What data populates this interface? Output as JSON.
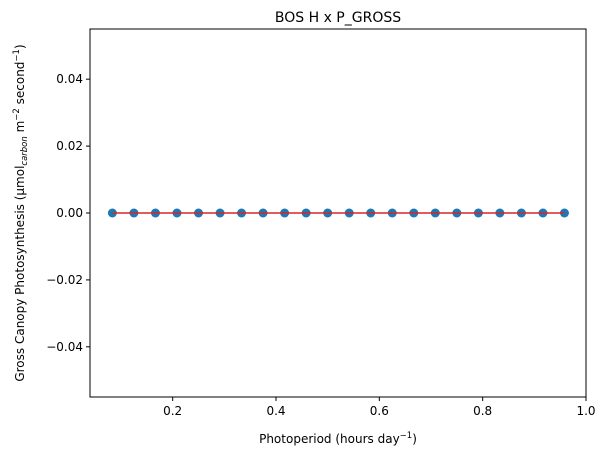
{
  "chart_data": {
    "type": "scatter",
    "title": "BOS H x P_GROSS",
    "xlabel_prefix": "Photoperiod (hours day",
    "xlabel_exp": "−1",
    "xlabel_suffix": ")",
    "ylabel_prefix": "Gross Canopy Photosynthesis (μmol",
    "ylabel_sub": "carbon",
    "ylabel_mid1": " m",
    "ylabel_exp1": "−2",
    "ylabel_mid2": " second",
    "ylabel_exp2": "−1",
    "ylabel_suffix": ")",
    "xlim": [
      0.04,
      1.0
    ],
    "ylim": [
      -0.055,
      0.055
    ],
    "xticks": [
      0.2,
      0.4,
      0.6,
      0.8,
      1.0
    ],
    "xtick_labels": [
      "0.2",
      "0.4",
      "0.6",
      "0.8",
      "1.0"
    ],
    "yticks": [
      -0.04,
      -0.02,
      0.0,
      0.02,
      0.04
    ],
    "ytick_labels": [
      "−0.04",
      "−0.02",
      "0.00",
      "0.02",
      "0.04"
    ],
    "grid": false,
    "series": [
      {
        "kind": "points",
        "color": "#1f77b4",
        "x": [
          0.0833,
          0.125,
          0.1667,
          0.2083,
          0.25,
          0.2917,
          0.3333,
          0.375,
          0.4167,
          0.4583,
          0.5,
          0.5417,
          0.5833,
          0.625,
          0.6667,
          0.7083,
          0.75,
          0.7917,
          0.8333,
          0.875,
          0.9167,
          0.9583
        ],
        "y": [
          0,
          0,
          0,
          0,
          0,
          0,
          0,
          0,
          0,
          0,
          0,
          0,
          0,
          0,
          0,
          0,
          0,
          0,
          0,
          0,
          0,
          0
        ]
      },
      {
        "kind": "fit-line",
        "color": "#d62728",
        "x": [
          0.0833,
          0.9583
        ],
        "y": [
          0,
          0
        ]
      }
    ]
  }
}
